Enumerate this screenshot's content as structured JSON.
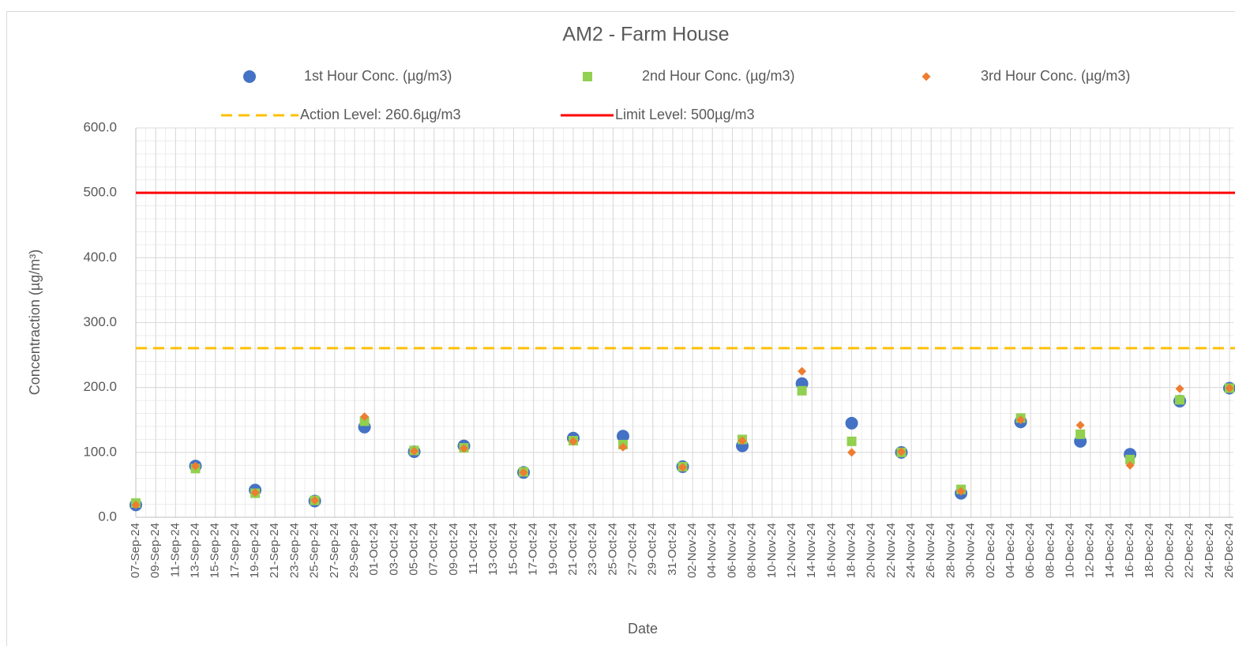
{
  "chart_data": {
    "type": "scatter",
    "title": "AM2 - Farm House",
    "x_label": "Date",
    "y_label": "Concentraction (µg/m³)",
    "x": [
      "07-Sep-24",
      "13-Sep-24",
      "19-Sep-24",
      "25-Sep-24",
      "30-Sep-24",
      "05-Oct-24",
      "10-Oct-24",
      "16-Oct-24",
      "21-Oct-24",
      "26-Oct-24",
      "01-Nov-24",
      "07-Nov-24",
      "13-Nov-24",
      "18-Nov-24",
      "23-Nov-24",
      "29-Nov-24",
      "05-Dec-24",
      "11-Dec-24",
      "16-Dec-24",
      "21-Dec-24",
      "26-Dec-24"
    ],
    "series": [
      {
        "name": "1st Hour Conc. (µg/m3)",
        "color": "#4472c4",
        "marker": "circle",
        "values": [
          19,
          79,
          42,
          25,
          139,
          101,
          110,
          69,
          122,
          125,
          78,
          110,
          206,
          145,
          100,
          37,
          147,
          117,
          97,
          179,
          199
        ]
      },
      {
        "name": "2nd Hour Conc. (µg/m3)",
        "color": "#92d050",
        "marker": "square",
        "values": [
          22,
          75,
          37,
          26,
          148,
          103,
          107,
          70,
          118,
          112,
          78,
          120,
          195,
          117,
          100,
          43,
          153,
          128,
          89,
          181,
          199
        ]
      },
      {
        "name": "3rd Hour Conc. (µg/m3)",
        "color": "#ed7d31",
        "marker": "diamond",
        "values": [
          19,
          79,
          38,
          26,
          155,
          102,
          106,
          69,
          117,
          108,
          77,
          118,
          225,
          100,
          101,
          40,
          150,
          142,
          80,
          198,
          199
        ]
      }
    ],
    "reference_lines": [
      {
        "name": "Action Level: 260.6µg/m3",
        "value": 260.6,
        "color": "#ffc000",
        "style": "dashed"
      },
      {
        "name": "Limit Level: 500µg/m3",
        "value": 500,
        "color": "#ff0000",
        "style": "solid"
      }
    ],
    "xlim": [
      "07-Sep-24",
      "26-Dec-24"
    ],
    "xticks": [
      "07-Sep-24",
      "09-Sep-24",
      "11-Sep-24",
      "13-Sep-24",
      "15-Sep-24",
      "17-Sep-24",
      "19-Sep-24",
      "21-Sep-24",
      "23-Sep-24",
      "25-Sep-24",
      "27-Sep-24",
      "29-Sep-24",
      "01-Oct-24",
      "03-Oct-24",
      "05-Oct-24",
      "07-Oct-24",
      "09-Oct-24",
      "11-Oct-24",
      "13-Oct-24",
      "15-Oct-24",
      "17-Oct-24",
      "19-Oct-24",
      "21-Oct-24",
      "23-Oct-24",
      "25-Oct-24",
      "27-Oct-24",
      "29-Oct-24",
      "31-Oct-24",
      "02-Nov-24",
      "04-Nov-24",
      "06-Nov-24",
      "08-Nov-24",
      "10-Nov-24",
      "12-Nov-24",
      "14-Nov-24",
      "16-Nov-24",
      "18-Nov-24",
      "20-Nov-24",
      "22-Nov-24",
      "24-Nov-24",
      "26-Nov-24",
      "28-Nov-24",
      "30-Nov-24",
      "02-Dec-24",
      "04-Dec-24",
      "06-Dec-24",
      "08-Dec-24",
      "10-Dec-24",
      "12-Dec-24",
      "14-Dec-24",
      "16-Dec-24",
      "18-Dec-24",
      "20-Dec-24",
      "22-Dec-24",
      "24-Dec-24",
      "26-Dec-24"
    ],
    "ylim": [
      0,
      600
    ],
    "yticks": [
      {
        "value": 0,
        "label": "0.0"
      },
      {
        "value": 100,
        "label": "100.0"
      },
      {
        "value": 200,
        "label": "200.0"
      },
      {
        "value": 300,
        "label": "300.0"
      },
      {
        "value": 400,
        "label": "400.0"
      },
      {
        "value": 500,
        "label": "500.0"
      },
      {
        "value": 600,
        "label": "600.0"
      }
    ],
    "grid": true,
    "legend": "top"
  }
}
